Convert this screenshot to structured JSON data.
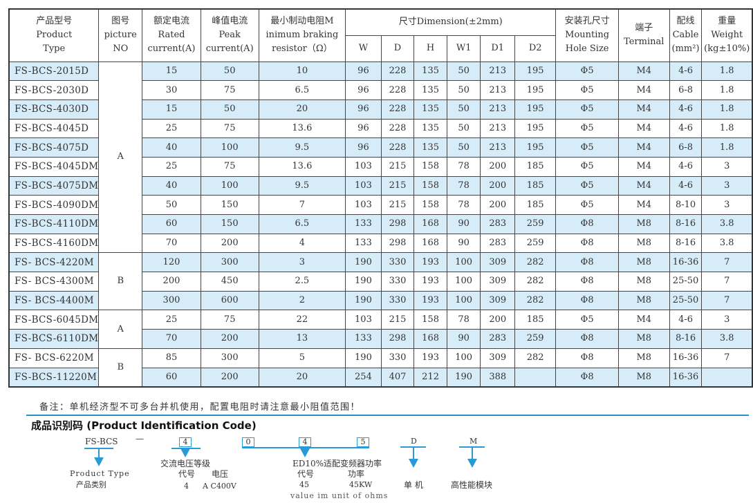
{
  "table": {
    "headers": {
      "product_type": [
        "产品型号",
        "Product",
        "Type"
      ],
      "picture": [
        "图号",
        "picture",
        "NO"
      ],
      "rated": [
        "额定电流",
        "Rated",
        "current(A)"
      ],
      "peak": [
        "峰值电流",
        "Peak",
        "current(A)"
      ],
      "resistor": [
        "最小制动电阻M",
        "inimum braking",
        "resistor（Ω）"
      ],
      "dimension": "尺寸Dimension(±2mm)",
      "dims": [
        "W",
        "D",
        "H",
        "W1",
        "D1",
        "D2"
      ],
      "mounting": [
        "安装孔尺寸",
        "Mounting",
        "Hole Size"
      ],
      "terminal": [
        "端子",
        "Terminal"
      ],
      "cable": [
        "配线",
        "Cable",
        "(mm²)"
      ],
      "weight": [
        "重量",
        "Weight",
        "(kg±10%)"
      ]
    },
    "rows": [
      [
        "FS-BCS-2015D",
        "15",
        "50",
        "10",
        "96",
        "228",
        "135",
        "50",
        "213",
        "195",
        "Φ5",
        "M4",
        "4-6",
        "1.8"
      ],
      [
        "FS-BCS-2030D",
        "30",
        "75",
        "6.5",
        "96",
        "228",
        "135",
        "50",
        "213",
        "195",
        "Φ5",
        "M4",
        "6-8",
        "1.8"
      ],
      [
        "FS-BCS-4030D",
        "15",
        "50",
        "20",
        "96",
        "228",
        "135",
        "50",
        "213",
        "195",
        "Φ5",
        "M4",
        "4-6",
        "1.8"
      ],
      [
        "FS-BCS-4045D",
        "25",
        "75",
        "13.6",
        "96",
        "228",
        "135",
        "50",
        "213",
        "195",
        "Φ5",
        "M4",
        "4-6",
        "1.8"
      ],
      [
        "FS-BCS-4075D",
        "40",
        "100",
        "9.5",
        "96",
        "228",
        "135",
        "50",
        "213",
        "195",
        "Φ5",
        "M4",
        "6-8",
        "1.8"
      ],
      [
        "FS-BCS-4045DM",
        "25",
        "75",
        "13.6",
        "103",
        "215",
        "158",
        "78",
        "200",
        "185",
        "Φ5",
        "M4",
        "4-6",
        "3"
      ],
      [
        "FS-BCS-4075DM",
        "40",
        "100",
        "9.5",
        "103",
        "215",
        "158",
        "78",
        "200",
        "185",
        "Φ5",
        "M4",
        "4-6",
        "3"
      ],
      [
        "FS-BCS-4090DM",
        "50",
        "150",
        "7",
        "103",
        "215",
        "158",
        "78",
        "200",
        "185",
        "Φ5",
        "M4",
        "8-10",
        "3"
      ],
      [
        "FS-BCS-4110DM",
        "60",
        "150",
        "6.5",
        "133",
        "298",
        "168",
        "90",
        "283",
        "259",
        "Φ8",
        "M8",
        "8-16",
        "3.8"
      ],
      [
        "FS-BCS-4160DM",
        "70",
        "200",
        "4",
        "133",
        "298",
        "168",
        "90",
        "283",
        "259",
        "Φ8",
        "M8",
        "8-16",
        "3.8"
      ],
      [
        "FS- BCS-4220M",
        "120",
        "300",
        "3",
        "190",
        "330",
        "193",
        "100",
        "309",
        "282",
        "Φ8",
        "M8",
        "16-36",
        "7"
      ],
      [
        "FS- BCS-4300M",
        "200",
        "450",
        "2.5",
        "190",
        "330",
        "193",
        "100",
        "309",
        "282",
        "Φ8",
        "M8",
        "25-50",
        "7"
      ],
      [
        "FS- BCS-4400M",
        "300",
        "600",
        "2",
        "190",
        "330",
        "193",
        "100",
        "309",
        "282",
        "Φ8",
        "M8",
        "25-50",
        "7"
      ],
      [
        "FS-BCS-6045DM",
        "25",
        "75",
        "22",
        "103",
        "215",
        "158",
        "78",
        "200",
        "185",
        "Φ5",
        "M4",
        "4-6",
        "3"
      ],
      [
        "FS-BCS-6110DM",
        "70",
        "200",
        "13",
        "133",
        "298",
        "168",
        "90",
        "283",
        "259",
        "Φ8",
        "M8",
        "8-16",
        "3.8"
      ],
      [
        "FS- BCS-6220M",
        "85",
        "300",
        "5",
        "190",
        "330",
        "193",
        "100",
        "309",
        "282",
        "Φ8",
        "M8",
        "16-36",
        "7"
      ],
      [
        "FS-BCS-11220M",
        "60",
        "200",
        "20",
        "254",
        "407",
        "212",
        "190",
        "388",
        "",
        "Φ8",
        "M8",
        "16-36",
        ""
      ]
    ],
    "picture_groups": [
      {
        "label": "A",
        "rows": 10
      },
      {
        "label": "B",
        "rows": 3
      },
      {
        "label": "A",
        "rows": 2
      },
      {
        "label": "B",
        "rows": 2
      }
    ],
    "row_highlight_color": "#d6ecf8"
  },
  "note": "备注：单机经济型不可多台并机使用，配置电阻时请注意最小阻值范围！",
  "code": {
    "title": "成品识别码 (Product Identification Code)",
    "prefix": "FS-BCS",
    "dash": "—",
    "voltage_box": "4",
    "res_boxes": [
      "0",
      "4",
      "5"
    ],
    "single": "D",
    "module": "M",
    "ptype_en": "Product Type",
    "ptype_cn": "产品类别",
    "voltage_title": "交流电压等级",
    "voltage_code_h": "代号",
    "voltage_h": "电压",
    "voltage_code": "4",
    "voltage_val": "A C400V",
    "ed_title": "ED10%适配变频器功率",
    "ed_code_h": "代号",
    "ed_power_h": "功率",
    "ed_code": "45",
    "ed_power": "45KW",
    "ed_overlay": "value im unit of ohms",
    "single_label": "单 机",
    "module_label": "高性能模块"
  }
}
